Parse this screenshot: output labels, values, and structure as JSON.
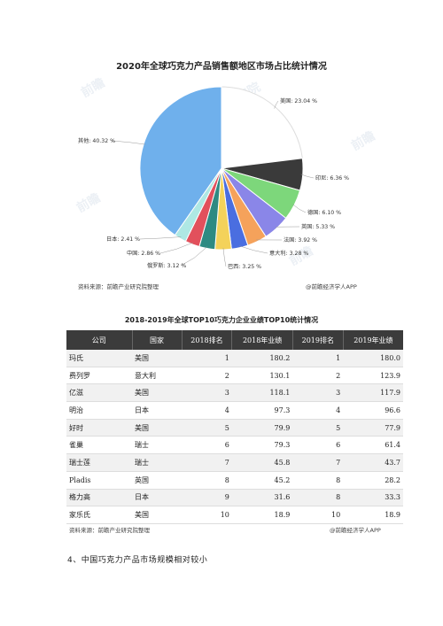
{
  "chart_data": {
    "type": "pie",
    "title": "2020年全球巧克力产品销售额地区市场占比统计情况",
    "categories": [
      "美国",
      "印尼",
      "德国",
      "英国",
      "法国",
      "意大利",
      "巴西",
      "俄罗斯",
      "中国",
      "日本",
      "其他"
    ],
    "values": [
      23.04,
      6.36,
      6.1,
      5.33,
      3.92,
      3.28,
      3.25,
      3.12,
      2.86,
      2.41,
      40.32
    ],
    "labels": [
      "美国: 23.04 %",
      "印尼: 6.36 %",
      "德国: 6.10 %",
      "英国: 5.33 %",
      "法国: 3.92 %",
      "意大利: 3.28 %",
      "巴西: 3.25 %",
      "俄罗斯: 3.12 %",
      "中国: 2.86 %",
      "日本: 2.41 %",
      "其他: 40.32 %"
    ],
    "colors": [
      "#ffffff",
      "#3a3a3a",
      "#7dd77b",
      "#8a86e8",
      "#f5a25b",
      "#4a6ee0",
      "#f4d25a",
      "#2e8a82",
      "#e2505c",
      "#aee8e4",
      "#6fb0ec"
    ],
    "legend": "none"
  },
  "pie_source": "资料来源：前瞻产业研究院整理",
  "pie_brand": "@前瞻经济学人APP",
  "table": {
    "title": "2018-2019年全球TOP10巧克力企业业绩TOP10统计情况",
    "headers": [
      "公司",
      "国家",
      "2018排名",
      "2018年业绩",
      "2019排名",
      "2019年业绩"
    ],
    "rows": [
      [
        "玛氏",
        "美国",
        "1",
        "180.2",
        "1",
        "180.0"
      ],
      [
        "费列罗",
        "意大利",
        "2",
        "130.1",
        "2",
        "123.9"
      ],
      [
        "亿滋",
        "美国",
        "3",
        "118.1",
        "3",
        "117.9"
      ],
      [
        "明治",
        "日本",
        "4",
        "97.3",
        "4",
        "96.6"
      ],
      [
        "好时",
        "美国",
        "5",
        "79.9",
        "5",
        "77.9"
      ],
      [
        "雀巢",
        "瑞士",
        "6",
        "79.3",
        "6",
        "61.4"
      ],
      [
        "瑞士莲",
        "瑞士",
        "7",
        "45.8",
        "7",
        "43.7"
      ],
      [
        "Pladis",
        "英国",
        "8",
        "45.2",
        "8",
        "28.2"
      ],
      [
        "格力高",
        "日本",
        "9",
        "31.6",
        "8",
        "33.3"
      ],
      [
        "家乐氏",
        "美国",
        "10",
        "18.9",
        "10",
        "18.9"
      ]
    ]
  },
  "table_source": "资料来源：前瞻产业研究院整理",
  "table_brand": "@前瞻经济学人APP",
  "section_heading": "4、中国巧克力产品市场规模相对较小"
}
